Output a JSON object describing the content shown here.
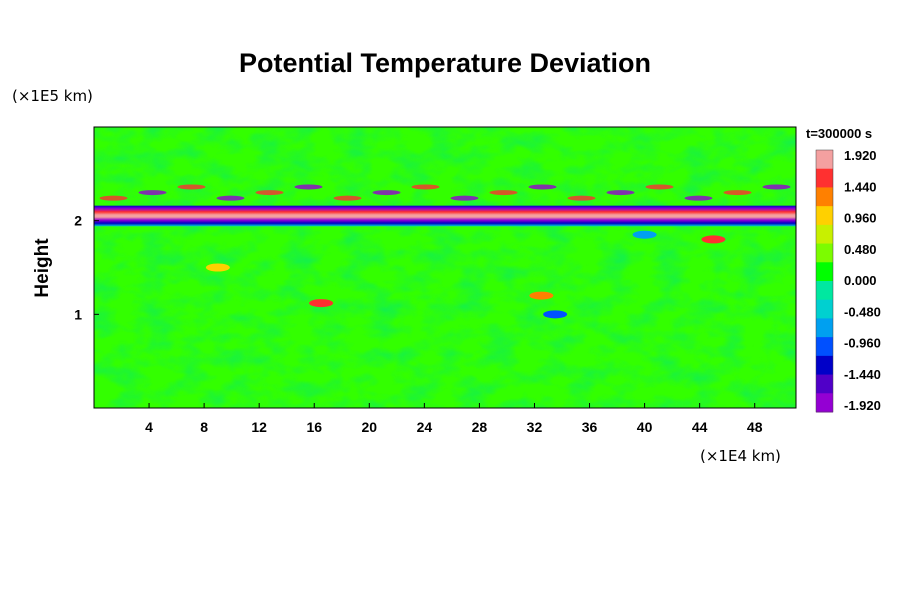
{
  "chart_data": {
    "type": "heatmap",
    "title": "Potential Temperature Deviation",
    "ylabel": "Height",
    "x_unit": "(×1E4 km)",
    "y_unit": "(×1E5 km)",
    "time_label": "t=300000 s",
    "xlim": [
      0,
      51
    ],
    "ylim": [
      0,
      3
    ],
    "x_ticks": [
      "4",
      "8",
      "12",
      "16",
      "20",
      "24",
      "28",
      "32",
      "36",
      "40",
      "44",
      "48"
    ],
    "y_ticks": [
      "1",
      "2"
    ],
    "colorbar": {
      "labels": [
        "1.920",
        "1.440",
        "0.960",
        "0.480",
        "0.000",
        "-0.480",
        "-0.960",
        "-1.440",
        "-1.920"
      ],
      "colors": [
        "#f4a0a0",
        "#ff3030",
        "#ff8000",
        "#ffd000",
        "#c8f000",
        "#7cfc00",
        "#00ff00",
        "#00e8a0",
        "#00d0d0",
        "#00a0f0",
        "#0050ff",
        "#0000c8",
        "#5000c8",
        "#9400d3"
      ]
    },
    "features": [
      {
        "type": "band",
        "y_center": 2.05,
        "half_width": 0.11,
        "x_range": [
          0,
          51
        ],
        "amplitude": 1.92
      },
      {
        "type": "blob",
        "x": 45,
        "y": 1.8,
        "amplitude": 1.6
      },
      {
        "type": "blob",
        "x": 16.5,
        "y": 1.12,
        "amplitude": 1.5
      },
      {
        "type": "blob",
        "x": 32.5,
        "y": 1.2,
        "amplitude": 1.4
      },
      {
        "type": "blob",
        "x": 9,
        "y": 1.5,
        "amplitude": 0.9
      },
      {
        "type": "blob",
        "x": 33.5,
        "y": 1.0,
        "amplitude": -0.9
      },
      {
        "type": "blob",
        "x": 40,
        "y": 1.85,
        "amplitude": -0.7
      }
    ]
  }
}
